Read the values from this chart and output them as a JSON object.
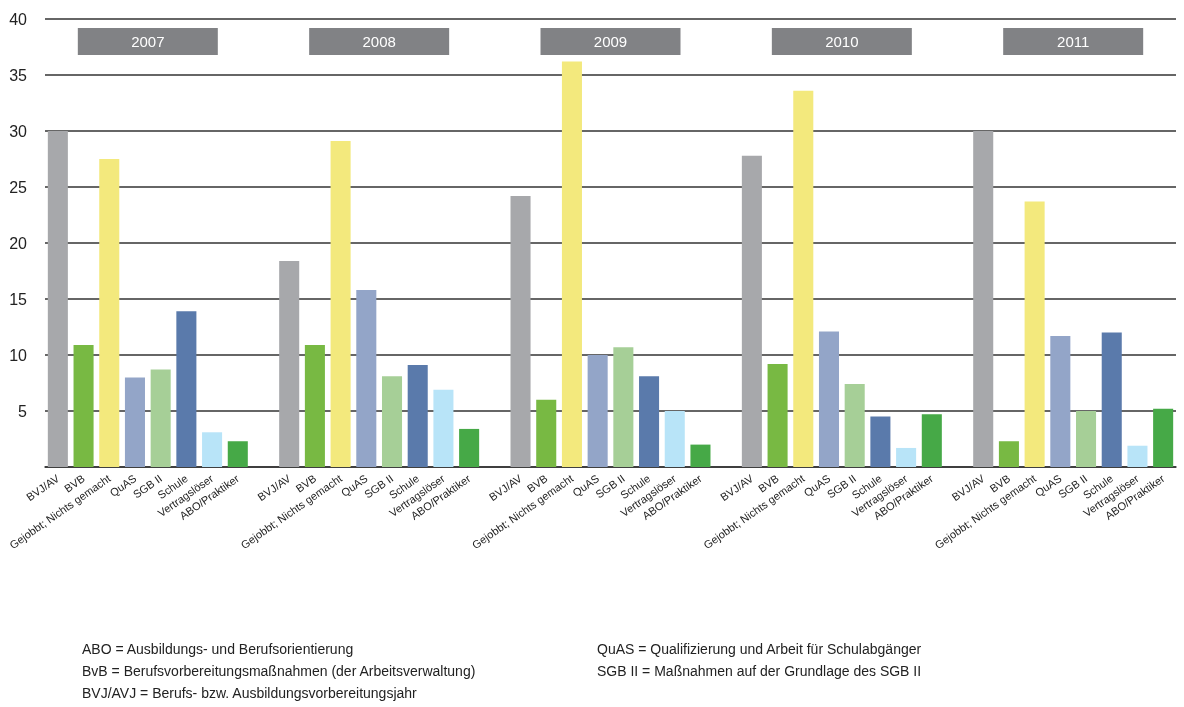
{
  "chart_data": {
    "type": "bar",
    "categories": [
      "BVJ/AV",
      "BVB",
      "Gejobbt; Nichts gemacht",
      "QuAS",
      "SGB II",
      "Schule",
      "Vertragslöser",
      "ABO/Praktiker",
      null,
      "BVJ/AV",
      "BVB",
      "Gejobbt; Nichts gemacht",
      "QuAS",
      "SGB II",
      "Schule",
      "Vertragslöser",
      "ABO/Praktiker",
      null,
      "BVJ/AV",
      "BVB",
      "Gejobbt; Nichts gemacht",
      "QuAS",
      "SGB II",
      "Schule",
      "Vertragslöser",
      "ABO/Praktiker",
      null,
      "BVJ/AV",
      "BVB",
      "Gejobbt; Nichts gemacht",
      "QuAS",
      "SGB II",
      "Schule",
      "Vertragslöser",
      "ABO/Praktiker",
      null,
      "BVJ/AV",
      "BVB",
      "Gejobbt; Nichts gemacht",
      "QuAS",
      "SGB II",
      "Schule",
      "Vertragslöser",
      "ABO/Praktiker"
    ],
    "values": [
      30,
      10.9,
      27.5,
      8.0,
      8.7,
      13.9,
      3.1,
      2.3,
      null,
      18.4,
      10.9,
      29.1,
      15.8,
      8.1,
      9.1,
      6.9,
      3.4,
      null,
      24.2,
      6.0,
      36.2,
      10.0,
      10.7,
      8.1,
      5.0,
      2.0,
      null,
      27.8,
      9.2,
      33.6,
      12.1,
      7.4,
      4.5,
      1.7,
      4.7,
      null,
      30.0,
      2.3,
      23.7,
      11.7,
      5.0,
      12.0,
      1.9,
      5.2
    ],
    "colors": [
      "#a7a8ab",
      "#78b943",
      "#f3e97d",
      "#93a5c8",
      "#a6cf97",
      "#5a7aab",
      "#b8e4f8",
      "#46a947",
      null,
      "#a7a8ab",
      "#78b943",
      "#f3e97d",
      "#93a5c8",
      "#a6cf97",
      "#5a7aab",
      "#b8e4f8",
      "#46a947",
      null,
      "#a7a8ab",
      "#78b943",
      "#f3e97d",
      "#93a5c8",
      "#a6cf97",
      "#5a7aab",
      "#b8e4f8",
      "#46a947",
      null,
      "#a7a8ab",
      "#78b943",
      "#f3e97d",
      "#93a5c8",
      "#a6cf97",
      "#5a7aab",
      "#b8e4f8",
      "#46a947",
      null,
      "#a7a8ab",
      "#78b943",
      "#f3e97d",
      "#93a5c8",
      "#a6cf97",
      "#5a7aab",
      "#b8e4f8",
      "#46a947"
    ],
    "ylim": [
      0,
      40
    ],
    "yticks": [
      {
        "value": 0,
        "label": null
      },
      5,
      10,
      15,
      20,
      25,
      30,
      35,
      40
    ],
    "grid": "y",
    "annotations": [
      "2007",
      "2008",
      "2009",
      "2010",
      "2011",
      "ABO = Ausbildungs- und Berufsorientierung",
      "BvB = Berufsvorbereitungsmaßnahmen (der Arbeitsverwaltung)",
      "BVJ/AVJ = Berufs- bzw. Ausbildungsvorbereitungsjahr",
      "QuAS = Qualifizierung und Arbeit für Schulabgänger",
      "SGB II = Maßnahmen auf der Grundlage des SGB II"
    ]
  }
}
